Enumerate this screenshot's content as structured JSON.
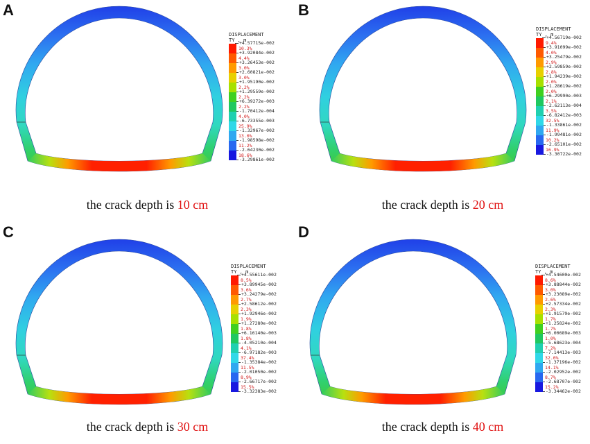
{
  "panels": [
    {
      "letter": "A",
      "caption_prefix": "the crack depth is ",
      "caption_depth": "10 cm",
      "legend": {
        "title": "DISPLACEMENT",
        "subtitle": "TY , m",
        "tick_labels": [
          "+4.57715e-002",
          "+3.92084e-002",
          "+3.26453e-002",
          "+2.60821e-002",
          "+1.95190e-002",
          "+1.29559e-002",
          "+6.39272e-003",
          "-1.70412e-004",
          "-6.73355e-003",
          "-1.32967e-002",
          "-1.98598e-002",
          "-2.64230e-002",
          "-3.29861e-002"
        ],
        "percentages": [
          "10.3%",
          "4.4%",
          "3.0%",
          "3.0%",
          "2.2%",
          "2.2%",
          "2.2%",
          "4.0%",
          "25.9%",
          "13.0%",
          "11.2%",
          "18.6%"
        ]
      }
    },
    {
      "letter": "B",
      "caption_prefix": "the crack depth is ",
      "caption_depth": "20 cm",
      "legend": {
        "title": "DISPLACEMENT",
        "subtitle": "TY , m",
        "tick_labels": [
          "+4.56719e-002",
          "+3.91099e-002",
          "+3.25479e-002",
          "+2.59859e-002",
          "+1.94239e-002",
          "+1.28619e-002",
          "+6.29990e-003",
          "-2.62113e-004",
          "-6.82412e-003",
          "-1.33861e-002",
          "-1.99481e-002",
          "-2.65101e-002",
          "-3.30722e-002"
        ],
        "percentages": [
          "9.4%",
          "4.0%",
          "2.9%",
          "2.8%",
          "2.0%",
          "2.0%",
          "2.1%",
          "3.5%",
          "32.5%",
          "11.9%",
          "10.2%",
          "16.9%"
        ]
      }
    },
    {
      "letter": "C",
      "caption_prefix": "the crack depth is ",
      "caption_depth": "30 cm",
      "legend": {
        "title": "DISPLACEMENT",
        "subtitle": "TY , m",
        "tick_labels": [
          "+4.55611e-002",
          "+3.89945e-002",
          "+3.24279e-002",
          "+2.58612e-002",
          "+1.92946e-002",
          "+1.27280e-002",
          "+6.16140e-003",
          "-4.05210e-004",
          "-6.97182e-003",
          "-1.35384e-002",
          "-2.01050e-002",
          "-2.66717e-002",
          "-3.32383e-002"
        ],
        "percentages": [
          "8.5%",
          "3.6%",
          "2.7%",
          "2.3%",
          "1.9%",
          "1.8%",
          "1.8%",
          "4.1%",
          "37.4%",
          "11.5%",
          "8.9%",
          "15.5%"
        ]
      }
    },
    {
      "letter": "D",
      "caption_prefix": "the crack depth is ",
      "caption_depth": "40 cm",
      "legend": {
        "title": "DISPLACEMENT",
        "subtitle": "TY , m",
        "tick_labels": [
          "+4.54600e-002",
          "+3.88844e-002",
          "+3.23089e-002",
          "+2.57334e-002",
          "+1.91579e-002",
          "+1.25824e-002",
          "+6.00689e-003",
          "-5.68623e-004",
          "-7.14413e-003",
          "-1.37196e-002",
          "-2.02952e-002",
          "-2.68707e-002",
          "-3.34462e-002"
        ],
        "percentages": [
          "8.6%",
          "3.0%",
          "2.6%",
          "2.3%",
          "1.7%",
          "1.7%",
          "1.0%",
          "7.2%",
          "32.0%",
          "14.1%",
          "8.7%",
          "15.2%"
        ]
      }
    }
  ],
  "colors": {
    "band_colors": [
      "#ff1a00",
      "#ff5a00",
      "#ff9a00",
      "#e8d000",
      "#a8e000",
      "#40d020",
      "#20c860",
      "#20d0b0",
      "#30d8e8",
      "#30a8f0",
      "#2868f0",
      "#1818e0"
    ],
    "caption_highlight": "#e01010"
  }
}
